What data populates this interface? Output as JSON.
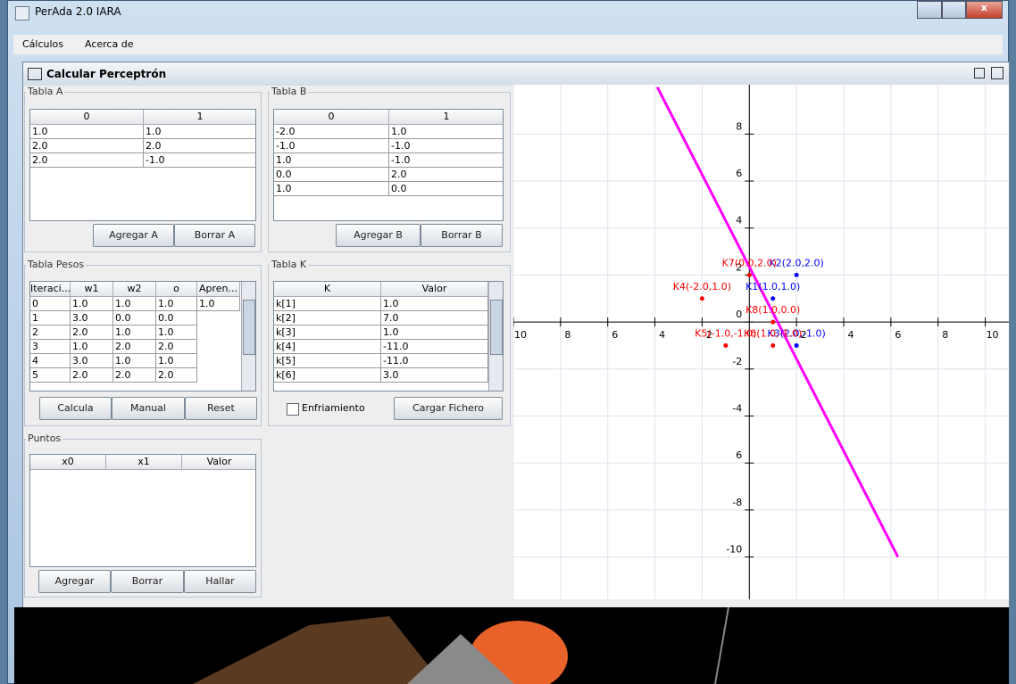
{
  "window": {
    "title": "PerAda 2.0 IARA"
  },
  "menu": [
    "Cálculos",
    "Acerca de"
  ],
  "frame": {
    "title": "Calcular Perceptrón"
  },
  "tabla_a": {
    "title": "Tabla A",
    "columns": [
      "0",
      "1"
    ],
    "rows": [
      [
        "1.0",
        "1.0"
      ],
      [
        "2.0",
        "2.0"
      ],
      [
        "2.0",
        "-1.0"
      ]
    ],
    "buttons": [
      "Agregar A",
      "Borrar A"
    ]
  },
  "tabla_b": {
    "title": "Tabla B",
    "columns": [
      "0",
      "1"
    ],
    "rows": [
      [
        "-2.0",
        "1.0"
      ],
      [
        "-1.0",
        "-1.0"
      ],
      [
        "1.0",
        "-1.0"
      ],
      [
        "0.0",
        "2.0"
      ],
      [
        "1.0",
        "0.0"
      ]
    ],
    "buttons": [
      "Agregar B",
      "Borrar B"
    ]
  },
  "tabla_pesos": {
    "title": "Tabla Pesos",
    "columns": [
      "Iteraci...",
      "w1",
      "w2",
      "o",
      "Apren..."
    ],
    "rows": [
      [
        "0",
        "1.0",
        "1.0",
        "1.0",
        "1.0"
      ],
      [
        "1",
        "3.0",
        "0.0",
        "0.0"
      ],
      [
        "2",
        "2.0",
        "1.0",
        "1.0"
      ],
      [
        "3",
        "1.0",
        "2.0",
        "2.0"
      ],
      [
        "4",
        "3.0",
        "1.0",
        "1.0"
      ],
      [
        "5",
        "2.0",
        "2.0",
        "2.0"
      ]
    ],
    "buttons": [
      "Calcula",
      "Manual",
      "Reset"
    ]
  },
  "tabla_k": {
    "title": "Tabla K",
    "columns": [
      "K",
      "Valor"
    ],
    "rows": [
      [
        "k[1]",
        "1.0"
      ],
      [
        "k[2]",
        "7.0"
      ],
      [
        "k[3]",
        "1.0"
      ],
      [
        "k[4]",
        "-11.0"
      ],
      [
        "k[5]",
        "-11.0"
      ],
      [
        "k[6]",
        "3.0"
      ]
    ],
    "checkbox": "Enfriamiento",
    "button": "Cargar Fichero"
  },
  "puntos": {
    "title": "Puntos",
    "columns": [
      "x0",
      "x1",
      "Valor"
    ],
    "buttons": [
      "Agregar",
      "Borrar",
      "Hallar"
    ]
  },
  "plot": {
    "xlim": [
      -10,
      11
    ],
    "ylim": [
      -11.8,
      10.1
    ],
    "xticks": [
      {
        "value": -10,
        "label": "10"
      },
      {
        "value": -8,
        "label": "8"
      },
      {
        "value": -6,
        "label": "6"
      },
      {
        "value": -4,
        "label": "4"
      },
      {
        "value": -2,
        "label": "2"
      },
      2,
      4,
      6,
      8,
      10
    ],
    "yticks": [
      8,
      6,
      4,
      2,
      0,
      -2,
      -4,
      {
        "value": -6,
        "label": "6"
      },
      -8,
      -10
    ],
    "points": [
      {
        "x": 1,
        "y": 1,
        "label": "K1(1.0,1.0)",
        "color": "#0000ff"
      },
      {
        "x": 2,
        "y": 2,
        "label": "K2(2.0,2.0)",
        "color": "#0000ff"
      },
      {
        "x": 2,
        "y": -1,
        "label": "K3(2.0,-1.0)",
        "color": "#0000ff"
      },
      {
        "x": -2,
        "y": 1,
        "label": "K4(-2.0,1.0)",
        "color": "#ff0000"
      },
      {
        "x": -1,
        "y": -1,
        "label": "K5(-1.0,-1.0)",
        "color": "#ff0000"
      },
      {
        "x": 1,
        "y": -1,
        "label": "K6(1.0,-1.0)",
        "color": "#ff0000"
      },
      {
        "x": 0,
        "y": 2,
        "label": "K7(0.0,2.0)",
        "color": "#ff0000"
      },
      {
        "x": 1,
        "y": 0,
        "label": "K8(1.0,0.0)",
        "color": "#ff0000"
      }
    ],
    "line": {
      "x": [
        -3.9,
        6.3
      ],
      "y": [
        10,
        -10
      ],
      "color": "#ff00ff"
    }
  }
}
